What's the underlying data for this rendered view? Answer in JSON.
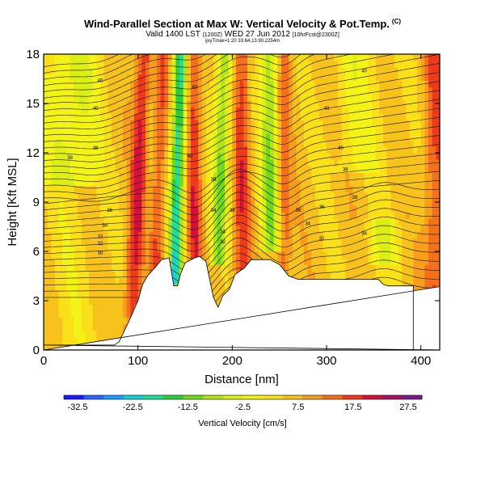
{
  "title": "Wind-Parallel Section at Max W: Vertical Velocity & Pot.Temp.",
  "title_mark": "(C)",
  "subtitle_main": "Valid 1400 LST",
  "subtitle_a": "(1200Z)",
  "subtitle_b": "WED 27 Jun 2012",
  "subtitle_c": "[10hrFcst@2300Z]",
  "subtitle_small": "ijxyTmax=1:20 33.64,13.90,2254m",
  "chart_data": {
    "type": "heatmap",
    "xlabel": "Distance [nm]",
    "ylabel": "Height [Kft MSL]",
    "xlim": [
      0,
      420
    ],
    "ylim": [
      0,
      18
    ],
    "xticks": [
      "0",
      "100",
      "200",
      "300",
      "400"
    ],
    "yticks": [
      "0",
      "3",
      "6",
      "9",
      "12",
      "15",
      "18"
    ],
    "colorbar": {
      "label": "Vertical Velocity [cm/s]",
      "ticks": [
        "-32.5",
        "-22.5",
        "-12.5",
        "-2.5",
        "7.5",
        "17.5",
        "27.5"
      ],
      "range": [
        -35,
        30
      ],
      "colors": [
        "#1a1aff",
        "#2a64ff",
        "#1e9bff",
        "#15d0d8",
        "#22dc9a",
        "#2ecc40",
        "#72d81c",
        "#b2e41c",
        "#dcee16",
        "#f4f316",
        "#fae018",
        "#f8c21c",
        "#f79e1c",
        "#f5701c",
        "#ee3a1c",
        "#d4103c",
        "#a81060",
        "#7a1a8c"
      ]
    },
    "contour_labels": [
      "30",
      "32",
      "34",
      "36",
      "38",
      "40"
    ],
    "terrain_kft": [
      [
        0,
        0.3
      ],
      [
        75,
        0.3
      ],
      [
        80,
        0.5
      ],
      [
        90,
        1.7
      ],
      [
        100,
        3.0
      ],
      [
        105,
        4.0
      ],
      [
        110,
        4.5
      ],
      [
        118,
        5.0
      ],
      [
        125,
        5.5
      ],
      [
        133,
        5.6
      ],
      [
        138,
        3.9
      ],
      [
        142,
        3.9
      ],
      [
        145,
        4.6
      ],
      [
        150,
        5.3
      ],
      [
        160,
        5.6
      ],
      [
        165,
        5.7
      ],
      [
        172,
        5.4
      ],
      [
        180,
        3.2
      ],
      [
        185,
        2.6
      ],
      [
        190,
        3.3
      ],
      [
        197,
        3.7
      ],
      [
        203,
        4.6
      ],
      [
        213,
        5.0
      ],
      [
        220,
        5.5
      ],
      [
        240,
        5.5
      ],
      [
        250,
        5.2
      ],
      [
        260,
        4.5
      ],
      [
        270,
        4.3
      ],
      [
        300,
        4.3
      ],
      [
        340,
        4.3
      ],
      [
        355,
        4.3
      ],
      [
        360,
        4.0
      ],
      [
        365,
        3.9
      ],
      [
        375,
        3.9
      ],
      [
        385,
        3.9
      ],
      [
        392,
        3.9
      ],
      [
        392,
        0
      ],
      [
        0,
        0
      ]
    ]
  }
}
